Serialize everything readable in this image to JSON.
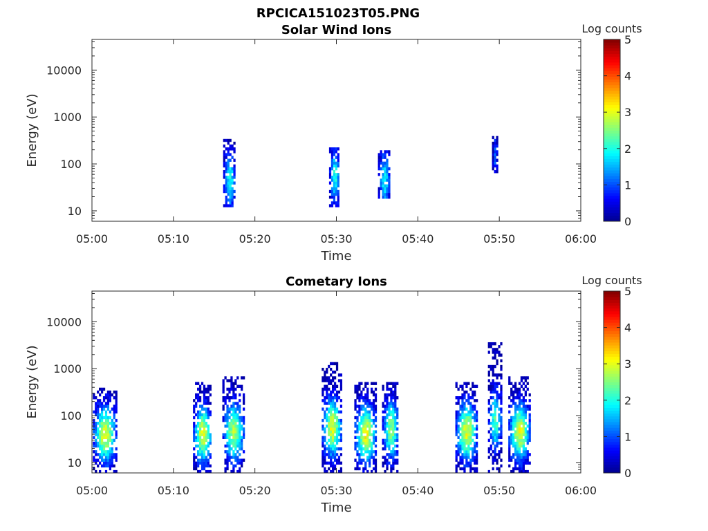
{
  "figure_title": "RPCICA151023T05.PNG",
  "colormap": [
    "#00008f",
    "#0000ff",
    "#0080ff",
    "#00ffff",
    "#80ff80",
    "#ffff00",
    "#ff8000",
    "#ff0000",
    "#800000"
  ],
  "chart_data": [
    {
      "type": "heatmap",
      "title": "Solar Wind Ions",
      "xlabel": "Time",
      "ylabel": "Energy (eV)",
      "x_ticks": [
        "05:00",
        "05:10",
        "05:20",
        "05:30",
        "05:40",
        "05:50",
        "06:00"
      ],
      "y_ticks": [
        "10",
        "100",
        "1000",
        "10000"
      ],
      "xlim_minutes": [
        0,
        60
      ],
      "ylim_eV": [
        6,
        45000
      ],
      "yscale": "log",
      "colorbar": {
        "label": "Log counts",
        "ticks": [
          "0",
          "1",
          "2",
          "3",
          "4",
          "5"
        ],
        "range": [
          0,
          5
        ]
      },
      "clusters": [
        {
          "center_min": 16.8,
          "width_min": 1.4,
          "emin": 12,
          "emax": 330,
          "peak": 2.0,
          "peak_energy": 45
        },
        {
          "center_min": 29.7,
          "width_min": 1.2,
          "emin": 12,
          "emax": 210,
          "peak": 2.0,
          "peak_energy": 55
        },
        {
          "center_min": 35.8,
          "width_min": 1.4,
          "emin": 18,
          "emax": 200,
          "peak": 1.8,
          "peak_energy": 45
        },
        {
          "center_min": 49.4,
          "width_min": 0.6,
          "emin": 60,
          "emax": 380,
          "peak": 1.0,
          "peak_energy": 150
        }
      ]
    },
    {
      "type": "heatmap",
      "title": "Cometary Ions",
      "xlabel": "Time",
      "ylabel": "Energy (eV)",
      "x_ticks": [
        "05:00",
        "05:10",
        "05:20",
        "05:30",
        "05:40",
        "05:50",
        "06:00"
      ],
      "y_ticks": [
        "10",
        "100",
        "1000",
        "10000"
      ],
      "xlim_minutes": [
        0,
        60
      ],
      "ylim_eV": [
        6,
        45000
      ],
      "yscale": "log",
      "colorbar": {
        "label": "Log counts",
        "ticks": [
          "0",
          "1",
          "2",
          "3",
          "4",
          "5"
        ],
        "range": [
          0,
          5
        ]
      },
      "clusters": [
        {
          "center_min": 1.5,
          "width_min": 2.8,
          "emin": 6,
          "emax": 380,
          "peak": 3.0,
          "peak_energy": 40
        },
        {
          "center_min": 13.5,
          "width_min": 2.2,
          "emin": 6,
          "emax": 500,
          "peak": 3.0,
          "peak_energy": 40
        },
        {
          "center_min": 17.3,
          "width_min": 2.6,
          "emin": 6,
          "emax": 700,
          "peak": 2.7,
          "peak_energy": 45
        },
        {
          "center_min": 29.4,
          "width_min": 2.4,
          "emin": 6,
          "emax": 1300,
          "peak": 3.0,
          "peak_energy": 55
        },
        {
          "center_min": 33.5,
          "width_min": 2.6,
          "emin": 6,
          "emax": 550,
          "peak": 3.1,
          "peak_energy": 40
        },
        {
          "center_min": 36.6,
          "width_min": 2.0,
          "emin": 6,
          "emax": 500,
          "peak": 2.6,
          "peak_energy": 50
        },
        {
          "center_min": 45.9,
          "width_min": 2.6,
          "emin": 6,
          "emax": 500,
          "peak": 3.0,
          "peak_energy": 45
        },
        {
          "center_min": 49.4,
          "width_min": 1.6,
          "emin": 6,
          "emax": 3800,
          "peak": 2.3,
          "peak_energy": 80
        },
        {
          "center_min": 52.4,
          "width_min": 2.6,
          "emin": 6,
          "emax": 700,
          "peak": 3.0,
          "peak_energy": 45
        }
      ]
    }
  ]
}
